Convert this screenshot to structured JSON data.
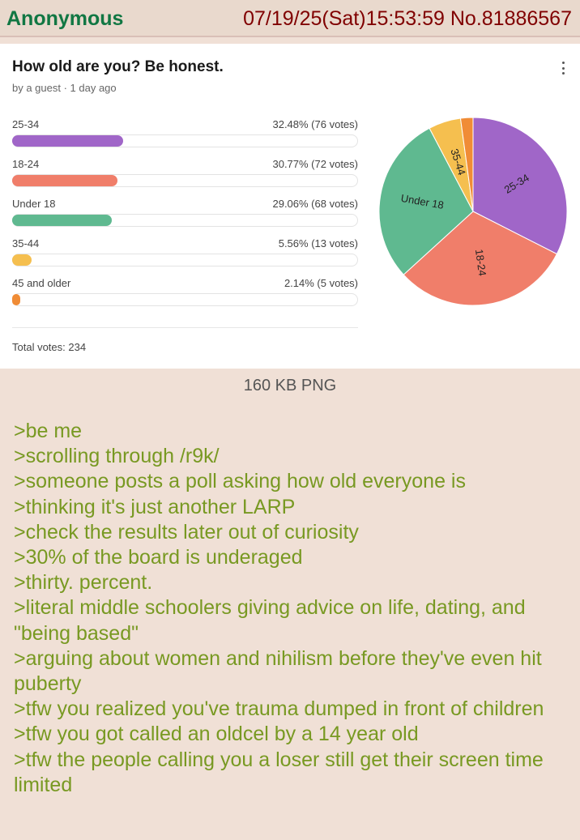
{
  "header": {
    "name": "Anonymous",
    "datetime": "07/19/25(Sat)15:53:59",
    "post_no": "No.81886567"
  },
  "poll": {
    "title": "How old are you? Be honest.",
    "meta": "by a guest · 1 day ago",
    "options": [
      {
        "label": "25-34",
        "stat": "32.48% (76 votes)",
        "percent": 32.48,
        "color": "#a066c8"
      },
      {
        "label": "18-24",
        "stat": "30.77% (72 votes)",
        "percent": 30.77,
        "color": "#f07e6a"
      },
      {
        "label": "Under 18",
        "stat": "29.06% (68 votes)",
        "percent": 29.06,
        "color": "#5fb990"
      },
      {
        "label": "35-44",
        "stat": "5.56% (13 votes)",
        "percent": 5.56,
        "color": "#f5bf4f"
      },
      {
        "label": "45 and older",
        "stat": "2.14% (5 votes)",
        "percent": 2.14,
        "color": "#f08c36"
      }
    ],
    "total": "Total votes: 234"
  },
  "chart_data": {
    "type": "pie",
    "categories": [
      "25-34",
      "18-24",
      "Under 18",
      "35-44",
      "45 and older"
    ],
    "values": [
      76,
      72,
      68,
      13,
      5
    ],
    "slice_labels": [
      "25-34",
      "18-24",
      "Under 18",
      "35-44",
      ""
    ],
    "colors": [
      "#a066c8",
      "#f07e6a",
      "#5fb990",
      "#f5bf4f",
      "#f08c36"
    ]
  },
  "file_info": "160 KB PNG",
  "post_lines": [
    ">be me",
    ">scrolling through /r9k/",
    ">someone posts a poll asking how old everyone is",
    ">thinking it's just another LARP",
    ">check the results later out of curiosity",
    ">30% of the board is underaged",
    ">thirty. percent.",
    ">literal middle schoolers giving advice on life, dating, and \"being based\"",
    ">arguing about women and nihilism before they've even hit puberty",
    ">tfw you realized you've trauma dumped in front of children",
    ">tfw you got called an oldcel by a 14 year old",
    ">tfw the people calling you a loser still get their screen time limited"
  ]
}
